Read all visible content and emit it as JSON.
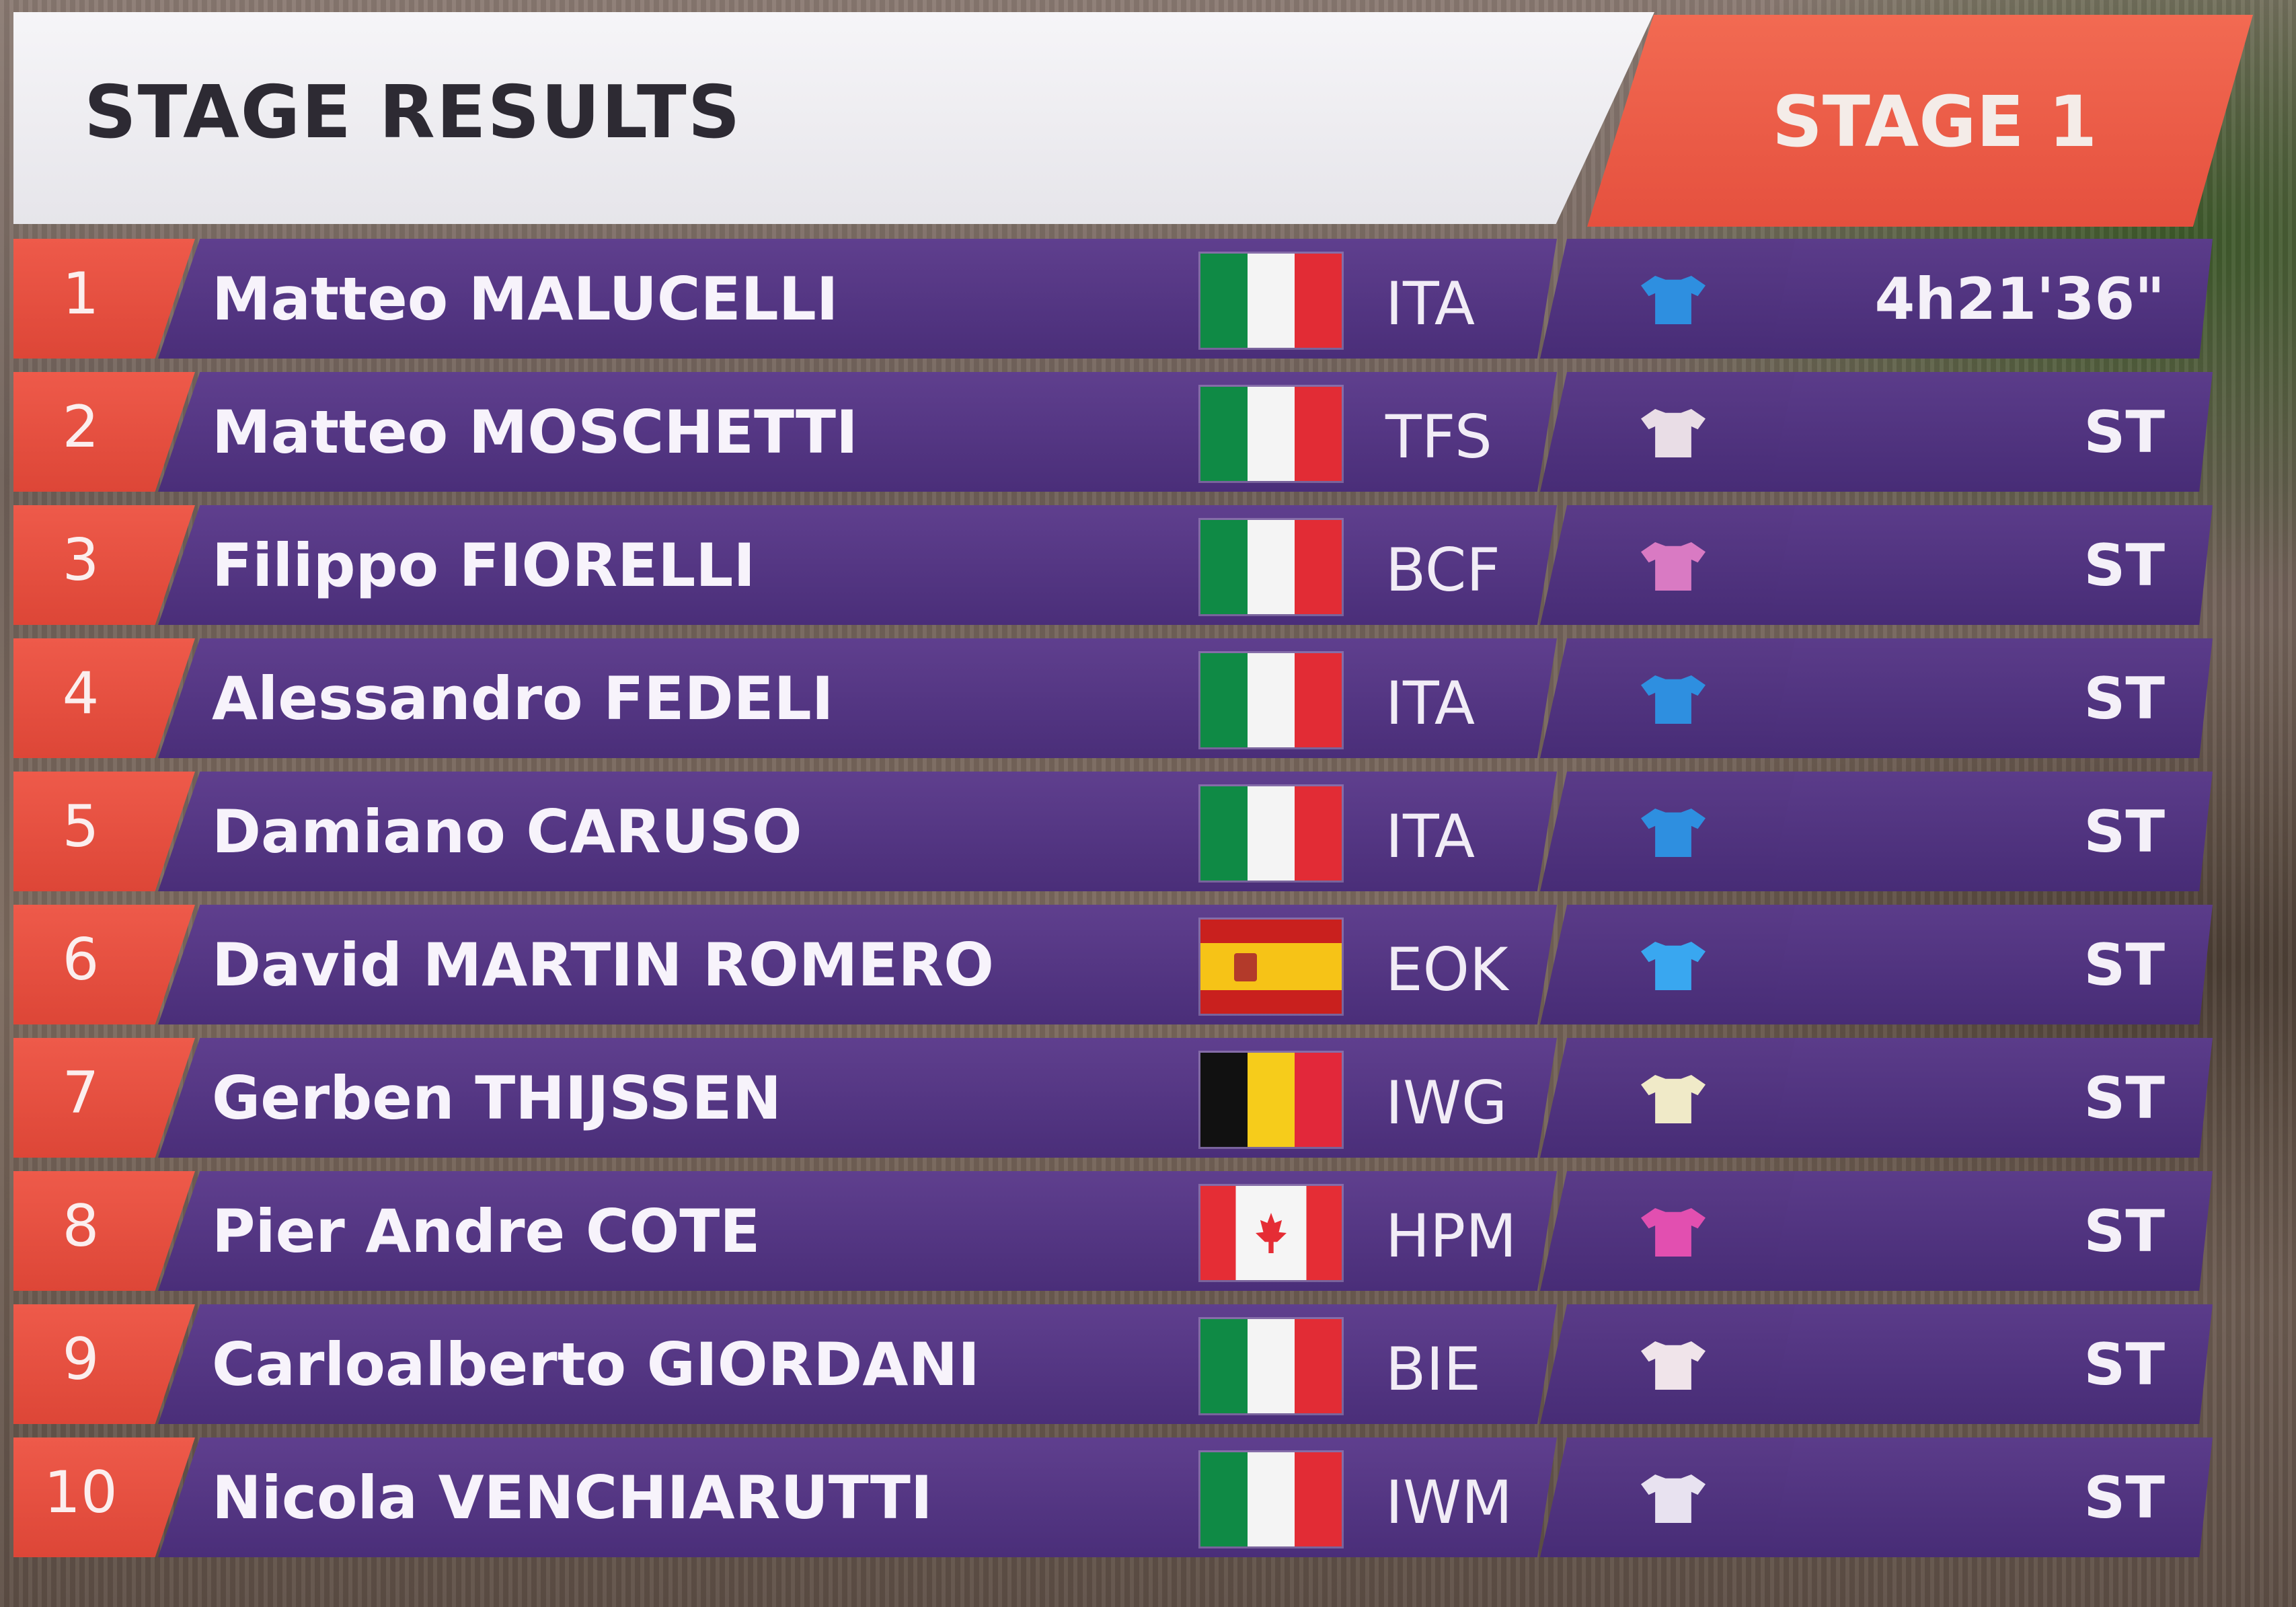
{
  "header": {
    "title": "STAGE RESULTS",
    "stage": "STAGE 1"
  },
  "colors": {
    "position_red": "#e5503e",
    "row_purple": "#4f3280",
    "header_white": "#f2f1f5"
  },
  "rows": [
    {
      "pos": "1",
      "name": "Matteo MALUCELLI",
      "flag": "italy",
      "team": "ITA",
      "jersey_color": "#2e8fe0",
      "time": "4h21'36\""
    },
    {
      "pos": "2",
      "name": "Matteo MOSCHETTI",
      "flag": "italy",
      "team": "TFS",
      "jersey_color": "#e9dde6",
      "time": "ST"
    },
    {
      "pos": "3",
      "name": "Filippo FIORELLI",
      "flag": "italy",
      "team": "BCF",
      "jersey_color": "#d97ac3",
      "time": "ST"
    },
    {
      "pos": "4",
      "name": "Alessandro FEDELI",
      "flag": "italy",
      "team": "ITA",
      "jersey_color": "#2e8fe0",
      "time": "ST"
    },
    {
      "pos": "5",
      "name": "Damiano CARUSO",
      "flag": "italy",
      "team": "ITA",
      "jersey_color": "#2e8fe0",
      "time": "ST"
    },
    {
      "pos": "6",
      "name": "David MARTIN ROMERO",
      "flag": "spain",
      "team": "EOK",
      "jersey_color": "#39a7f0",
      "time": "ST"
    },
    {
      "pos": "7",
      "name": "Gerben THIJSSEN",
      "flag": "belgium",
      "team": "IWG",
      "jersey_color": "#f0eac8",
      "time": "ST"
    },
    {
      "pos": "8",
      "name": "Pier Andre COTE",
      "flag": "canada",
      "team": "HPM",
      "jersey_color": "#e24fb0",
      "time": "ST"
    },
    {
      "pos": "9",
      "name": "Carloalberto GIORDANI",
      "flag": "italy",
      "team": "BIE",
      "jersey_color": "#f0e4ea",
      "time": "ST"
    },
    {
      "pos": "10",
      "name": "Nicola VENCHIARUTTI",
      "flag": "italy",
      "team": "IWM",
      "jersey_color": "#e8e2f0",
      "time": "ST"
    }
  ]
}
